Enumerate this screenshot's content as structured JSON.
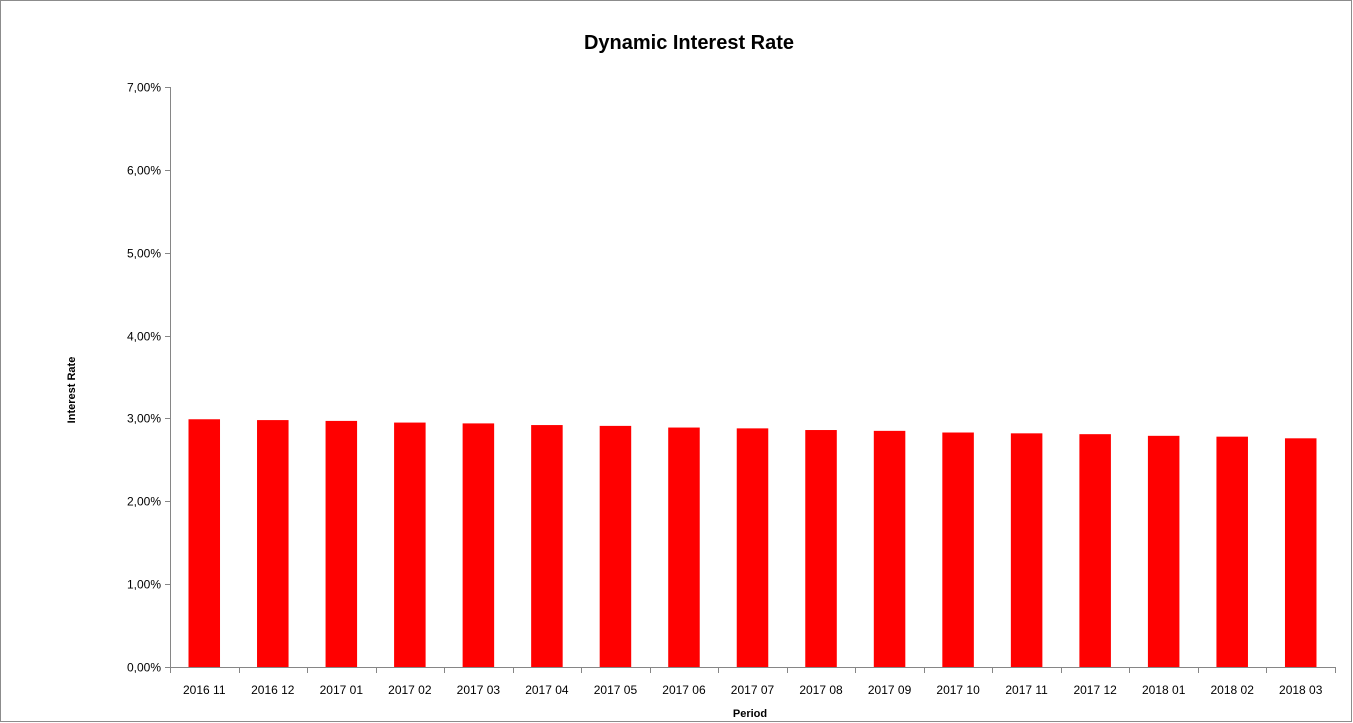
{
  "chart_data": {
    "type": "bar",
    "title": "Dynamic Interest Rate",
    "xlabel": "Period",
    "ylabel": "Interest Rate",
    "categories": [
      "2016 11",
      "2016 12",
      "2017 01",
      "2017 02",
      "2017 03",
      "2017 04",
      "2017 05",
      "2017 06",
      "2017 07",
      "2017 08",
      "2017 09",
      "2017 10",
      "2017 11",
      "2017 12",
      "2018 01",
      "2018 02",
      "2018 03"
    ],
    "values": [
      2.99,
      2.98,
      2.97,
      2.95,
      2.94,
      2.92,
      2.91,
      2.89,
      2.88,
      2.86,
      2.85,
      2.83,
      2.82,
      2.81,
      2.79,
      2.78,
      2.76
    ],
    "ylim": [
      0,
      7
    ],
    "yticks": [
      0,
      1,
      2,
      3,
      4,
      5,
      6,
      7
    ],
    "ytick_labels": [
      "0,00%",
      "1,00%",
      "2,00%",
      "3,00%",
      "4,00%",
      "5,00%",
      "6,00%",
      "7,00%"
    ],
    "bar_color": "#ff0000",
    "grid": false,
    "legend": "none"
  }
}
